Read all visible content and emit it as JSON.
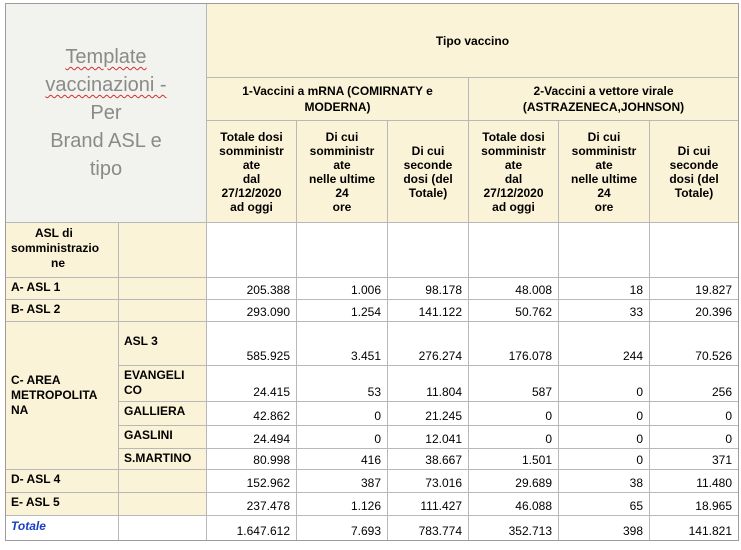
{
  "template_title": "Template vaccinazioni - Per Brand ASL e tipo",
  "template_title_lines": [
    "Template",
    "vaccinazioni -",
    "Per",
    "Brand ASL e",
    "tipo"
  ],
  "tipo_vaccino": "Tipo vaccino",
  "group1": {
    "line1": "1-Vaccini a mRNA (COMIRNATY e",
    "line2": "MODERNA)"
  },
  "group2": {
    "line1": "2-Vaccini a vettore virale",
    "line2": "(ASTRAZENECA,JOHNSON)"
  },
  "col_headers": [
    [
      "Totale dosi",
      "somministr",
      "ate",
      "dal",
      "27/12/2020",
      "ad oggi"
    ],
    [
      "Di cui",
      "somministr",
      "ate",
      "nelle ultime",
      "24",
      "ore"
    ],
    [
      "Di cui",
      "seconde",
      "dosi (del",
      "Totale)"
    ],
    [
      "Totale dosi",
      "somministr",
      "ate",
      "dal",
      "27/12/2020",
      "ad oggi"
    ],
    [
      "Di cui",
      "somministr",
      "ate",
      "nelle ultime",
      "24",
      "ore"
    ],
    [
      "Di cui",
      "seconde",
      "dosi (del",
      "Totale)"
    ]
  ],
  "asl_header_lines": [
    "ASL di",
    "somministrazio",
    "ne"
  ],
  "area_metropolitana_lines": [
    "C- AREA",
    "METROPOLITA",
    "NA"
  ],
  "rows": [
    {
      "label": "A- ASL 1",
      "sub": "",
      "values": [
        "205.388",
        "1.006",
        "98.178",
        "48.008",
        "18",
        "19.827"
      ]
    },
    {
      "label": "B- ASL 2",
      "sub": "",
      "values": [
        "293.090",
        "1.254",
        "141.122",
        "50.762",
        "33",
        "20.396"
      ]
    },
    {
      "label": "",
      "sub": "ASL 3",
      "values": [
        "585.925",
        "3.451",
        "276.274",
        "176.078",
        "244",
        "70.526"
      ]
    },
    {
      "label": "",
      "sub": "EVANGELI CO",
      "sub_lines": [
        "EVANGELI",
        "CO"
      ],
      "values": [
        "24.415",
        "53",
        "11.804",
        "587",
        "0",
        "256"
      ]
    },
    {
      "label": "",
      "sub": "GALLIERA",
      "values": [
        "42.862",
        "0",
        "21.245",
        "0",
        "0",
        "0"
      ]
    },
    {
      "label": "",
      "sub": "GASLINI",
      "values": [
        "24.494",
        "0",
        "12.041",
        "0",
        "0",
        "0"
      ]
    },
    {
      "label": "",
      "sub": "S.MARTINO",
      "values": [
        "80.998",
        "416",
        "38.667",
        "1.501",
        "0",
        "371"
      ]
    },
    {
      "label": "D- ASL 4",
      "sub": "",
      "values": [
        "152.962",
        "387",
        "73.016",
        "29.689",
        "38",
        "11.480"
      ]
    },
    {
      "label": "E- ASL 5",
      "sub": "",
      "values": [
        "237.478",
        "1.126",
        "111.427",
        "46.088",
        "65",
        "18.965"
      ]
    }
  ],
  "totale": {
    "label": "Totale",
    "values": [
      "1.647.612",
      "7.693",
      "783.774",
      "352.713",
      "398",
      "141.821"
    ]
  },
  "colors": {
    "header_bg": "#fbf3d7",
    "title_bg": "#f2f2ee",
    "title_text": "#8a8a8a",
    "totale_text": "#1a3ec9",
    "grid": "#b8b8b8"
  }
}
